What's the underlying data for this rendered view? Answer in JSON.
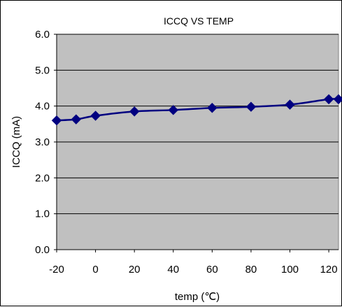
{
  "chart_data": {
    "type": "line",
    "title": "ICCQ VS TEMP",
    "xlabel": "temp (℃)",
    "ylabel": "ICCQ (mA)",
    "xlim": [
      -20,
      125
    ],
    "ylim": [
      0,
      6
    ],
    "x_ticks": [
      -20,
      0,
      20,
      40,
      60,
      80,
      100,
      120
    ],
    "y_ticks": [
      "0.0",
      "1.0",
      "2.0",
      "3.0",
      "4.0",
      "5.0",
      "6.0"
    ],
    "grid": "horizontal",
    "plot_background": "#c0c0c0",
    "series": [
      {
        "color": "#000080",
        "marker": "diamond",
        "smooth": true,
        "x": [
          -20,
          -10,
          0,
          20,
          40,
          60,
          80,
          100,
          120,
          125
        ],
        "y": [
          3.6,
          3.63,
          3.73,
          3.85,
          3.89,
          3.95,
          3.98,
          4.04,
          4.19,
          4.19
        ]
      }
    ]
  }
}
